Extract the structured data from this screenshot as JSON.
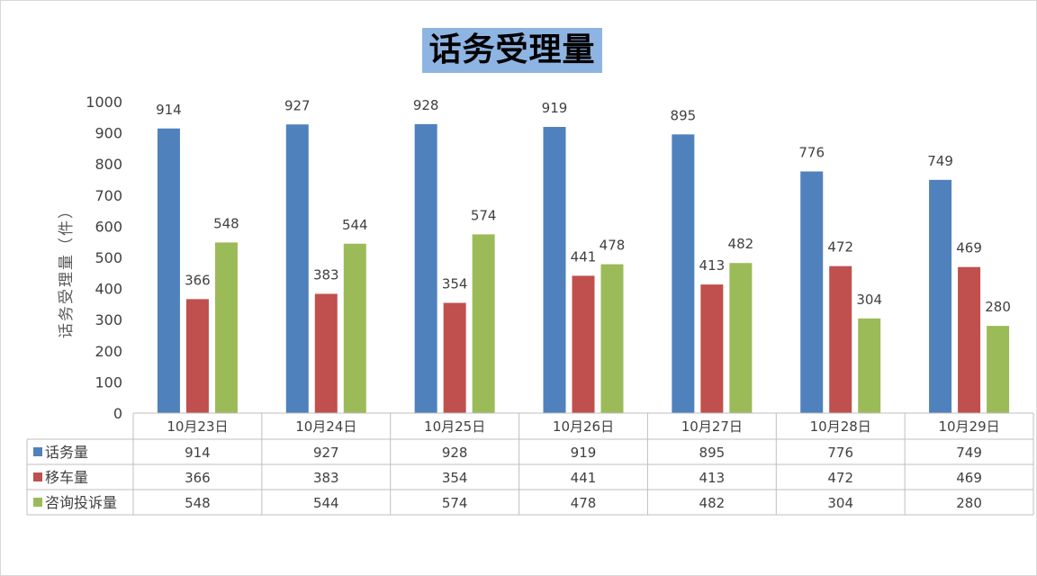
{
  "chart_data": {
    "type": "bar",
    "title": "话务受理量",
    "ylabel": "话务受理量（件）",
    "xlabel": "",
    "ylim": [
      0,
      1000
    ],
    "yticks": [
      0,
      100,
      200,
      300,
      400,
      500,
      600,
      700,
      800,
      900,
      1000
    ],
    "categories": [
      "10月23日",
      "10月24日",
      "10月25日",
      "10月26日",
      "10月27日",
      "10月28日",
      "10月29日"
    ],
    "series": [
      {
        "name": "话务量",
        "color": "#4f81bd",
        "values": [
          914,
          927,
          928,
          919,
          895,
          776,
          749
        ]
      },
      {
        "name": "移车量",
        "color": "#c0504d",
        "values": [
          366,
          383,
          354,
          441,
          413,
          472,
          469
        ]
      },
      {
        "name": "咨询投诉量",
        "color": "#9bbb59",
        "values": [
          548,
          544,
          574,
          478,
          482,
          304,
          280
        ]
      }
    ],
    "data_table": true,
    "grid": false
  }
}
